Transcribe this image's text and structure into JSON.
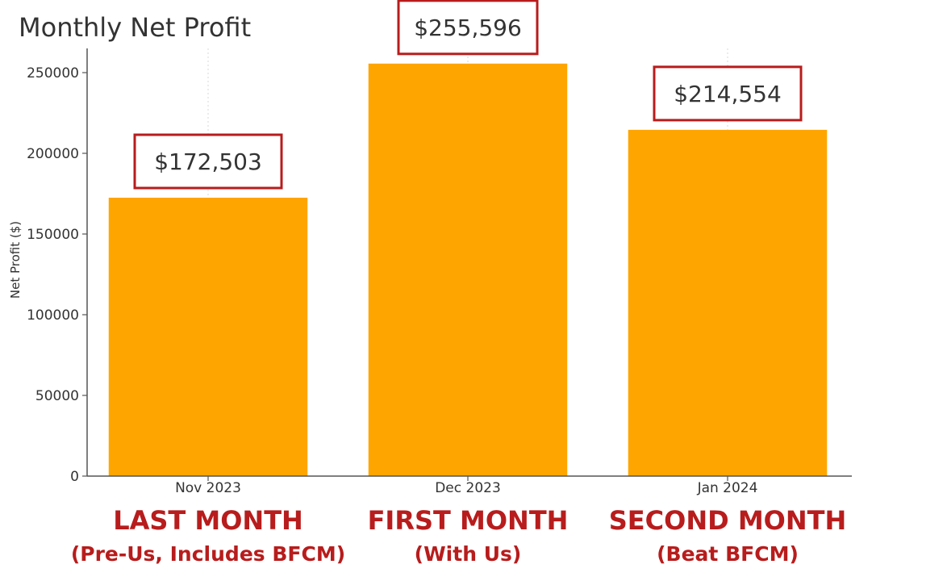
{
  "chart_data": {
    "type": "bar",
    "title": "Monthly Net Profit",
    "xlabel": "",
    "ylabel": "Net Profit ($)",
    "categories": [
      "Nov 2023",
      "Dec 2023",
      "Jan 2024"
    ],
    "values": [
      172503,
      255596,
      214554
    ],
    "value_labels": [
      "$172,503",
      "$255,596",
      "$214,554"
    ],
    "ylim": [
      0,
      265000
    ],
    "yticks": [
      0,
      50000,
      100000,
      150000,
      200000,
      250000
    ],
    "ytick_labels": [
      "0",
      "50000",
      "100000",
      "150000",
      "200000",
      "250000"
    ],
    "grid": "vertical",
    "bar_color": "#ffa500",
    "callout_border_color": "#b81c1c",
    "captions": [
      {
        "main": "LAST MONTH",
        "sub": "(Pre-Us, Includes BFCM)"
      },
      {
        "main": "FIRST MONTH",
        "sub": "(With Us)"
      },
      {
        "main": "SECOND MONTH",
        "sub": "(Beat BFCM)"
      }
    ],
    "caption_color": "#b81c1c"
  }
}
